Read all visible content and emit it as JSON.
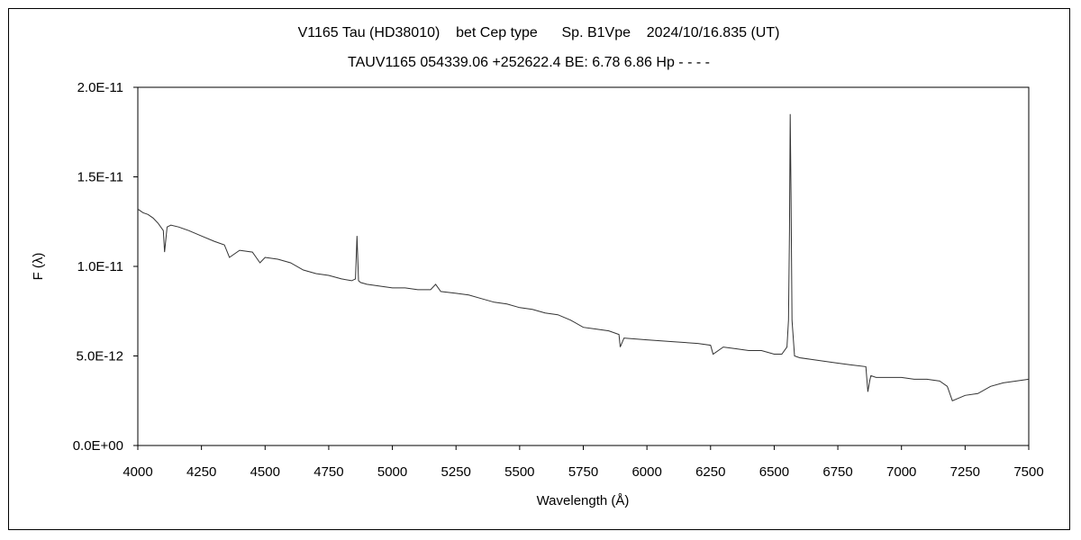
{
  "chart_data": {
    "type": "line",
    "title": "V1165 Tau (HD38010)    bet Cep type      Sp. B1Vpe    2024/10/16.835 (UT)",
    "subtitle": "TAUV1165 054339.06 +252622.4 BE: 6.78 6.86 Hp - - - -",
    "xlabel": "Wavelength (Å)",
    "ylabel": "F (λ)",
    "xlim": [
      4000,
      7500
    ],
    "ylim": [
      0,
      2e-11
    ],
    "x_ticks": [
      "4000",
      "4250",
      "4500",
      "4750",
      "5000",
      "5250",
      "5500",
      "5750",
      "6000",
      "6250",
      "6500",
      "6750",
      "7000",
      "7250",
      "7500"
    ],
    "y_ticks": [
      "0.0E+00",
      "5.0E-12",
      "1.0E-11",
      "1.5E-11",
      "2.0E-11"
    ],
    "grid": false,
    "legend": "none",
    "line_color": "#333333",
    "series": [
      {
        "x": [
          4000,
          4020,
          4040,
          4060,
          4080,
          4100,
          4105,
          4115,
          4130,
          4160,
          4200,
          4250,
          4300,
          4340,
          4360,
          4400,
          4450,
          4480,
          4500,
          4550,
          4600,
          4650,
          4700,
          4750,
          4800,
          4840,
          4855,
          4861,
          4867,
          4875,
          4900,
          4950,
          5000,
          5050,
          5100,
          5150,
          5170,
          5190,
          5250,
          5300,
          5350,
          5400,
          5450,
          5500,
          5550,
          5600,
          5650,
          5700,
          5750,
          5800,
          5850,
          5890,
          5895,
          5910,
          6000,
          6100,
          6200,
          6250,
          6260,
          6300,
          6350,
          6400,
          6450,
          6500,
          6530,
          6550,
          6556,
          6560,
          6563,
          6566,
          6570,
          6580,
          6600,
          6650,
          6700,
          6750,
          6800,
          6860,
          6868,
          6875,
          6880,
          6900,
          7000,
          7050,
          7100,
          7150,
          7180,
          7200,
          7250,
          7300,
          7350,
          7400,
          7450,
          7500
        ],
        "values": [
          1.32e-11,
          1.3e-11,
          1.29e-11,
          1.27e-11,
          1.24e-11,
          1.2e-11,
          1.08e-11,
          1.22e-11,
          1.23e-11,
          1.22e-11,
          1.2e-11,
          1.17e-11,
          1.14e-11,
          1.12e-11,
          1.05e-11,
          1.09e-11,
          1.08e-11,
          1.02e-11,
          1.05e-11,
          1.04e-11,
          1.02e-11,
          9.8e-12,
          9.6e-12,
          9.5e-12,
          9.3e-12,
          9.2e-12,
          9.3e-12,
          1.17e-11,
          9.2e-12,
          9.1e-12,
          9e-12,
          8.9e-12,
          8.8e-12,
          8.8e-12,
          8.7e-12,
          8.7e-12,
          9e-12,
          8.6e-12,
          8.5e-12,
          8.4e-12,
          8.2e-12,
          8e-12,
          7.9e-12,
          7.7e-12,
          7.6e-12,
          7.4e-12,
          7.3e-12,
          7e-12,
          6.6e-12,
          6.5e-12,
          6.4e-12,
          6.2e-12,
          5.5e-12,
          6e-12,
          5.9e-12,
          5.8e-12,
          5.7e-12,
          5.6e-12,
          5.1e-12,
          5.5e-12,
          5.4e-12,
          5.3e-12,
          5.3e-12,
          5.1e-12,
          5.1e-12,
          5.5e-12,
          7e-12,
          1.2e-11,
          1.85e-11,
          1.4e-11,
          7e-12,
          5e-12,
          4.9e-12,
          4.8e-12,
          4.7e-12,
          4.6e-12,
          4.5e-12,
          4.4e-12,
          3e-12,
          3.6e-12,
          3.9e-12,
          3.8e-12,
          3.8e-12,
          3.7e-12,
          3.7e-12,
          3.6e-12,
          3.3e-12,
          2.5e-12,
          2.8e-12,
          2.9e-12,
          3.3e-12,
          3.5e-12,
          3.6e-12,
          3.7e-12
        ]
      }
    ]
  }
}
